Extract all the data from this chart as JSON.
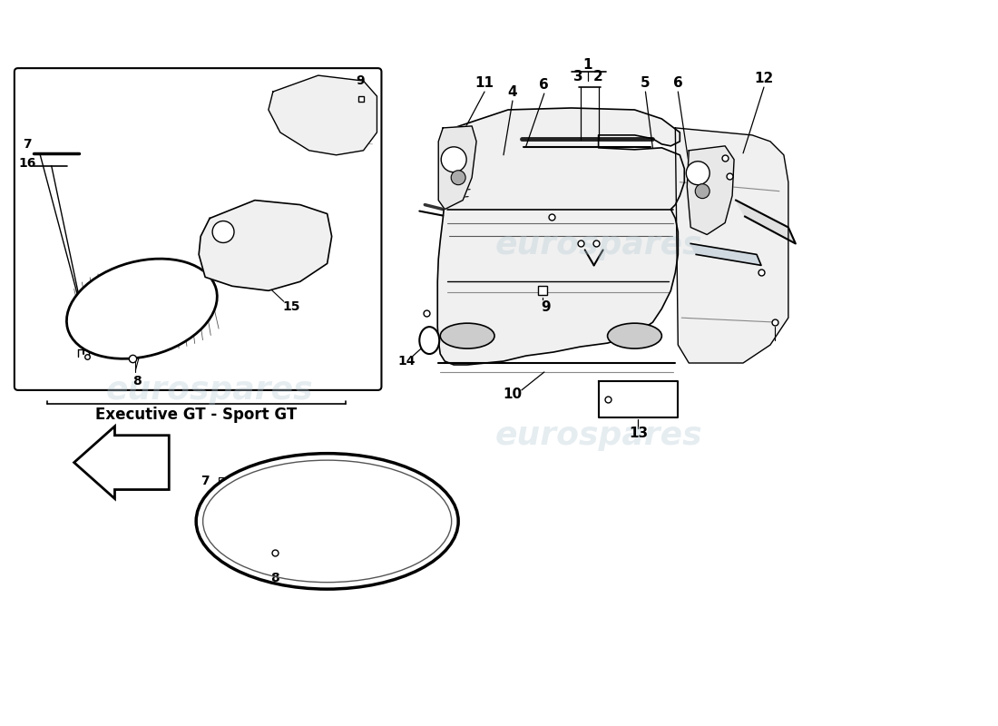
{
  "bg_color": "#ffffff",
  "watermark_text": "eurospares",
  "watermark_color": "#b8ccd8",
  "watermark_alpha": 0.35,
  "figsize": [
    11.0,
    8.0
  ],
  "dpi": 100,
  "box_label": "Executive GT - Sport GT"
}
